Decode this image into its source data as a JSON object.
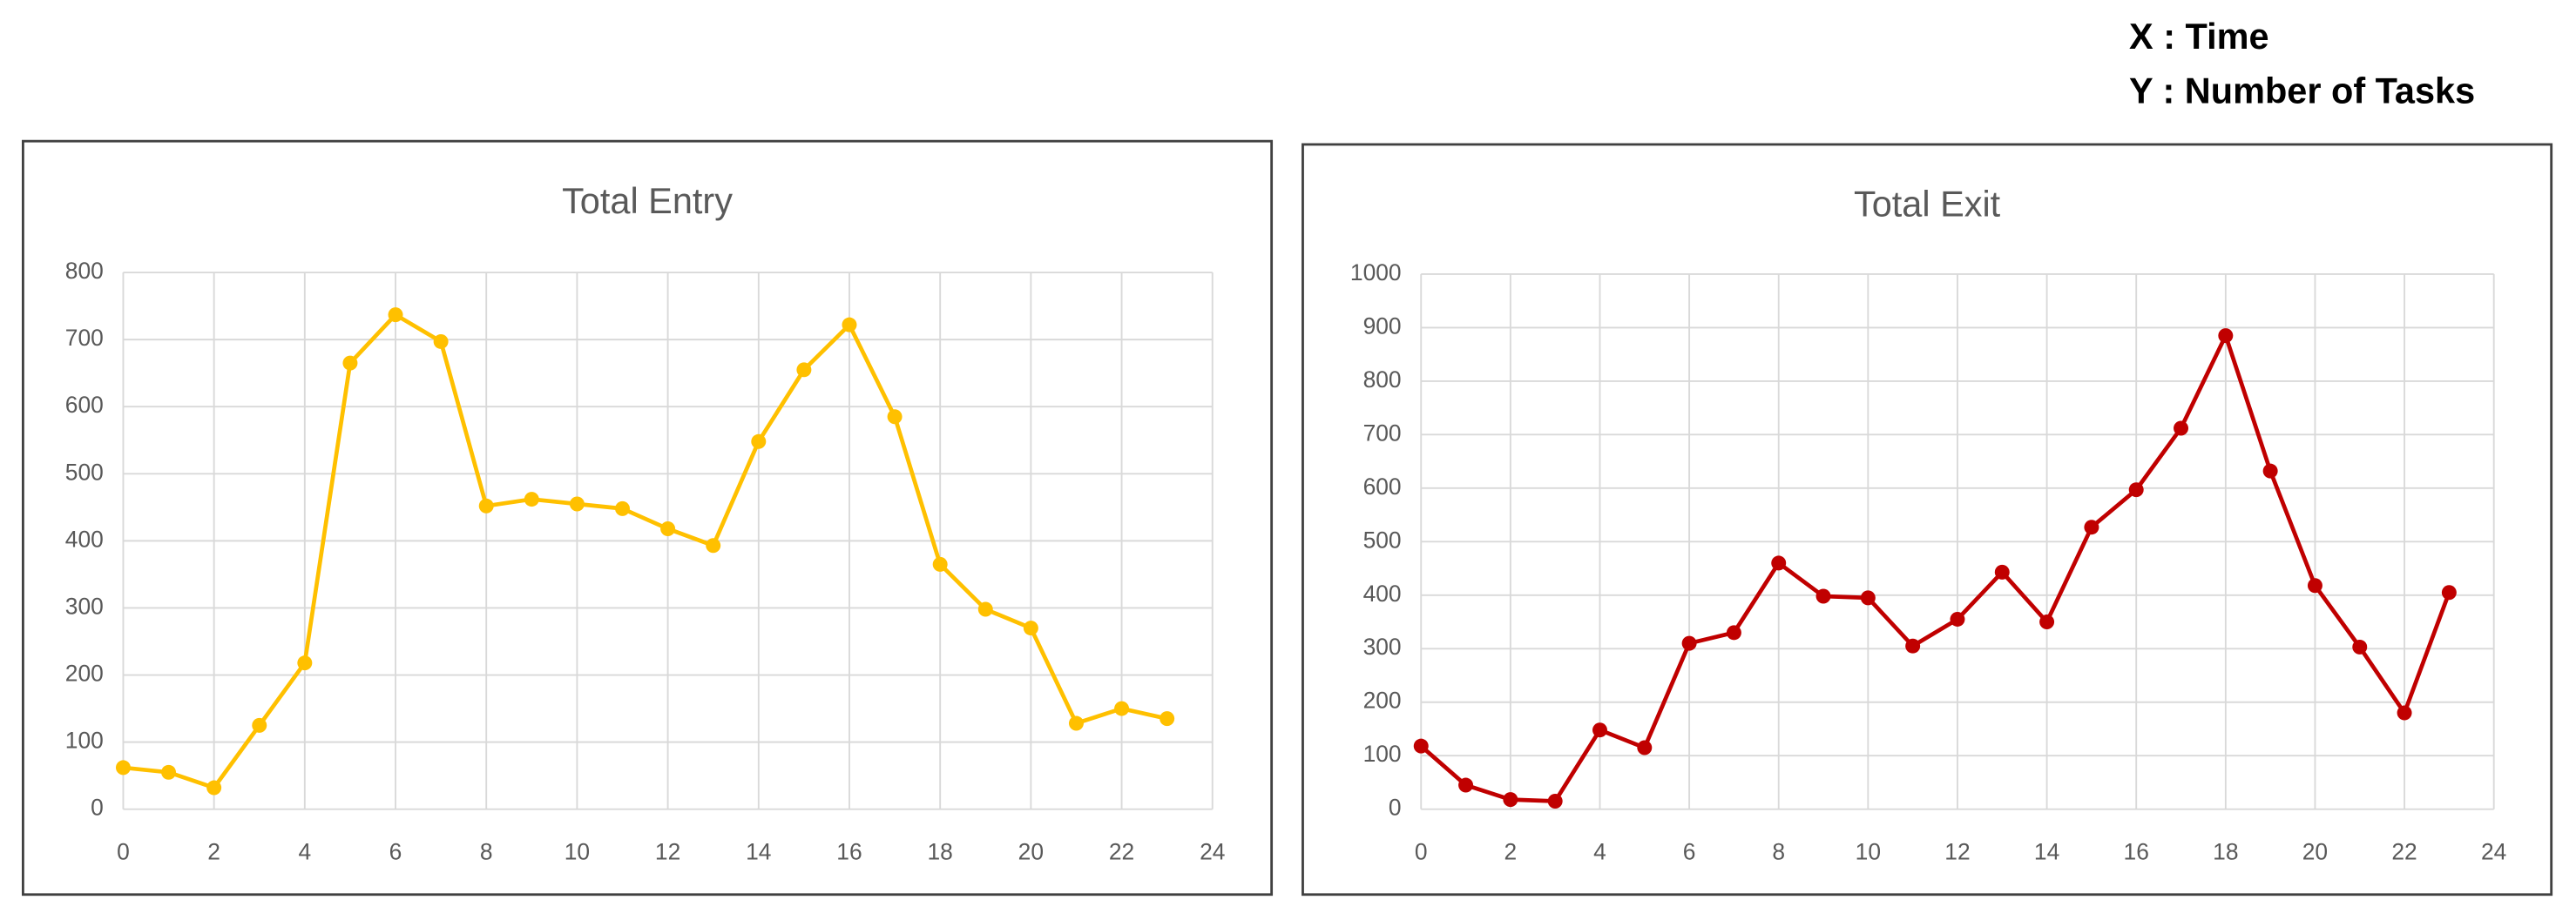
{
  "axis_note": [
    "X : Time",
    "Y : Number of Tasks"
  ],
  "chart_data": [
    {
      "type": "line",
      "title": "Total Entry",
      "x": [
        0,
        1,
        2,
        3,
        4,
        5,
        6,
        7,
        8,
        9,
        10,
        11,
        12,
        13,
        14,
        15,
        16,
        17,
        18,
        19,
        20,
        21,
        22,
        23
      ],
      "series": [
        {
          "color": "#ffc000",
          "values": [
            62,
            55,
            32,
            125,
            218,
            665,
            737,
            697,
            452,
            462,
            455,
            448,
            418,
            393,
            548,
            655,
            722,
            585,
            365,
            298,
            270,
            128,
            150,
            135
          ]
        }
      ],
      "xlim": [
        0,
        24
      ],
      "xticks": [
        0,
        2,
        4,
        6,
        8,
        10,
        12,
        14,
        16,
        18,
        20,
        22,
        24
      ],
      "ylim": [
        0,
        800
      ],
      "yticks": [
        0,
        100,
        200,
        300,
        400,
        500,
        600,
        700,
        800
      ],
      "grid": true
    },
    {
      "type": "line",
      "title": "Total Exit",
      "x": [
        0,
        1,
        2,
        3,
        4,
        5,
        6,
        7,
        8,
        9,
        10,
        11,
        12,
        13,
        14,
        15,
        16,
        17,
        18,
        19,
        20,
        21,
        22,
        23
      ],
      "series": [
        {
          "color": "#c00000",
          "values": [
            118,
            45,
            18,
            15,
            148,
            115,
            310,
            330,
            460,
            398,
            395,
            305,
            355,
            443,
            350,
            527,
            597,
            712,
            885,
            632,
            418,
            303,
            180,
            405
          ]
        }
      ],
      "xlim": [
        0,
        24
      ],
      "xticks": [
        0,
        2,
        4,
        6,
        8,
        10,
        12,
        14,
        16,
        18,
        20,
        22,
        24
      ],
      "ylim": [
        0,
        1000
      ],
      "yticks": [
        0,
        100,
        200,
        300,
        400,
        500,
        600,
        700,
        800,
        900,
        1000
      ],
      "grid": true
    }
  ]
}
